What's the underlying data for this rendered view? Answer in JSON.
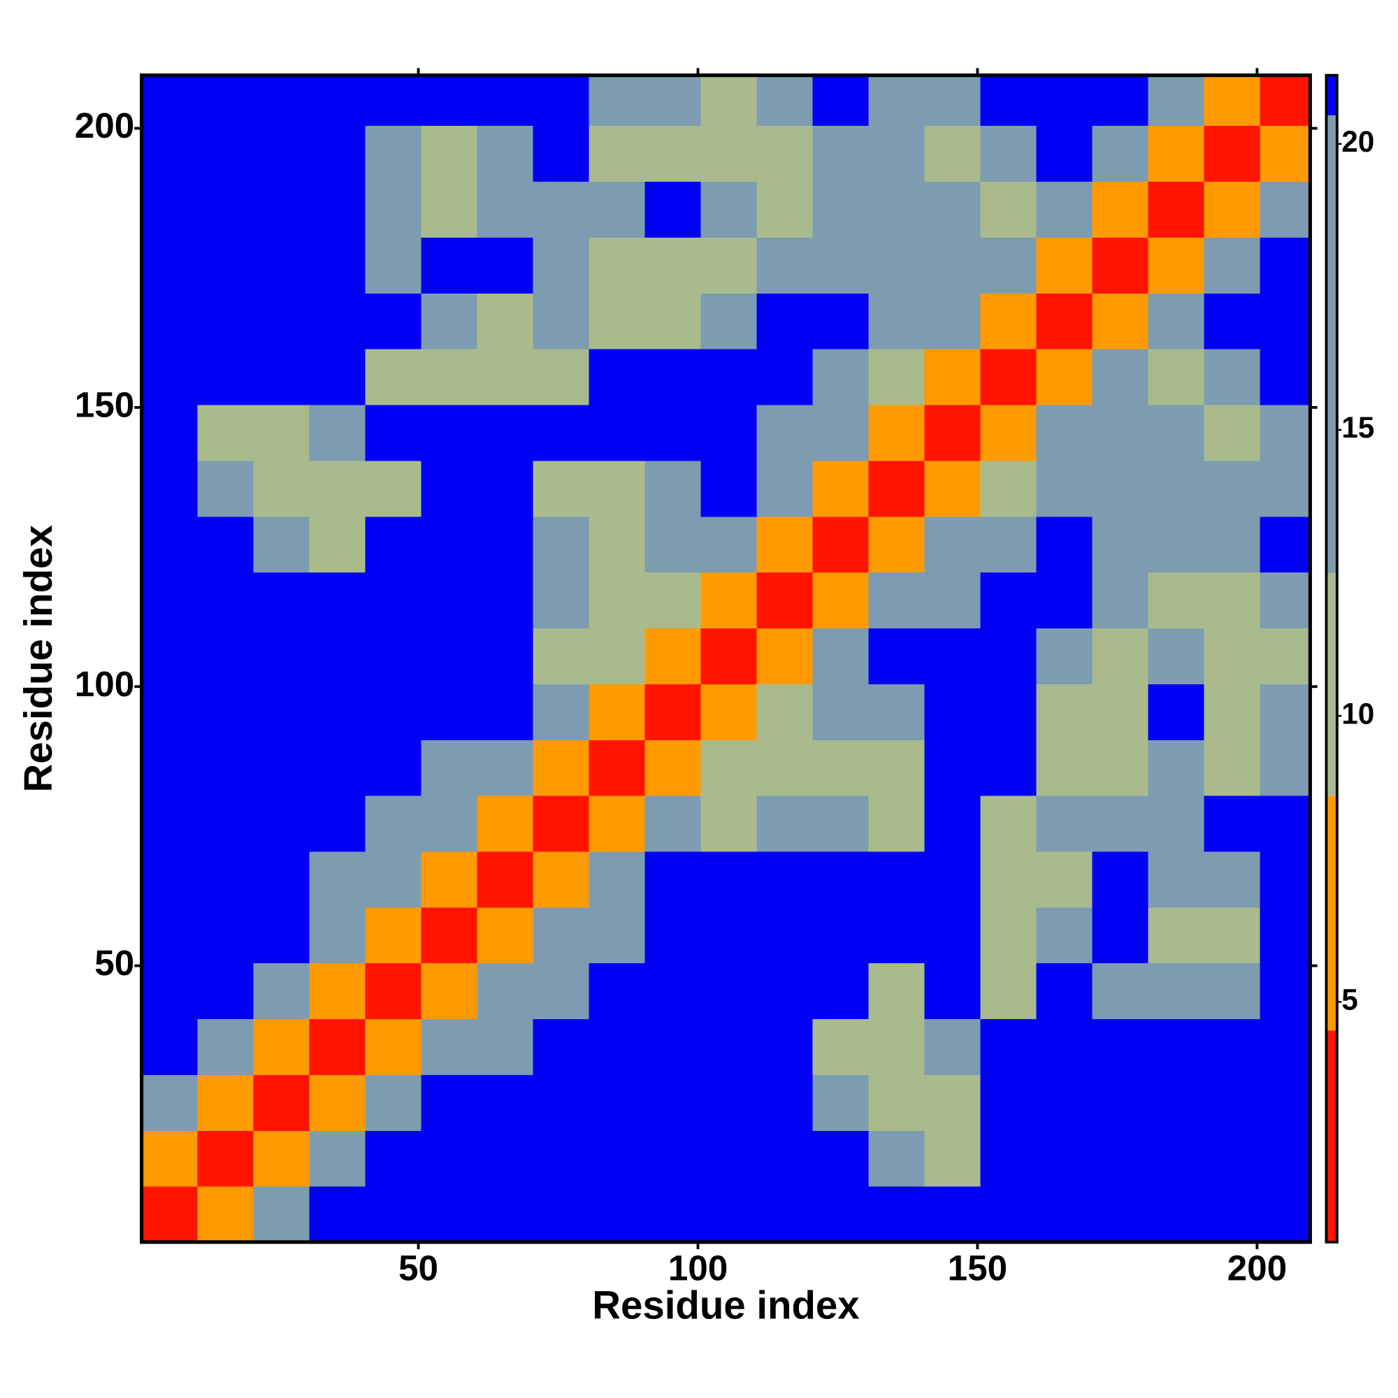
{
  "chart_data": {
    "type": "heatmap",
    "xlabel": "Residue index",
    "ylabel": "Residue index",
    "xlim": [
      0.5,
      209.5
    ],
    "ylim": [
      0.5,
      209.5
    ],
    "xticks": [
      50,
      100,
      150,
      200
    ],
    "yticks": [
      50,
      100,
      150,
      200
    ],
    "xbins": [
      0.5,
      10.5,
      20.5,
      30.5,
      40.5,
      50.5,
      60.5,
      70.5,
      80.5,
      90.5,
      100.5,
      110.5,
      120.5,
      130.5,
      140.5,
      150.5,
      160.5,
      170.5,
      180.5,
      190.5,
      200.5,
      209.5
    ],
    "ybins": [
      0.5,
      10.5,
      20.5,
      30.5,
      40.5,
      50.5,
      60.5,
      70.5,
      80.5,
      90.5,
      100.5,
      110.5,
      120.5,
      130.5,
      140.5,
      150.5,
      160.5,
      170.5,
      180.5,
      190.5,
      200.5,
      209.5
    ],
    "z": [
      [
        3,
        8,
        13,
        21,
        21,
        21,
        21,
        21,
        21,
        21,
        21,
        21,
        21,
        21,
        21,
        21,
        21,
        21,
        21,
        21,
        21
      ],
      [
        8,
        3,
        8,
        13,
        21,
        21,
        21,
        21,
        21,
        21,
        21,
        21,
        21,
        16,
        12,
        21,
        21,
        21,
        21,
        21,
        21
      ],
      [
        13,
        8,
        3,
        8,
        13,
        21,
        21,
        21,
        21,
        21,
        21,
        21,
        16,
        12,
        12,
        21,
        21,
        21,
        21,
        21,
        21
      ],
      [
        21,
        13,
        8,
        3,
        8,
        13,
        16,
        21,
        21,
        21,
        21,
        21,
        12,
        12,
        16,
        21,
        21,
        21,
        21,
        21,
        21
      ],
      [
        21,
        21,
        13,
        8,
        3,
        8,
        13,
        16,
        21,
        21,
        21,
        21,
        21,
        12,
        21,
        12,
        21,
        16,
        16,
        16,
        21
      ],
      [
        21,
        21,
        21,
        13,
        8,
        3,
        8,
        13,
        16,
        21,
        21,
        21,
        21,
        21,
        21,
        12,
        16,
        21,
        12,
        12,
        21
      ],
      [
        21,
        21,
        21,
        16,
        13,
        8,
        3,
        8,
        13,
        21,
        21,
        21,
        21,
        21,
        21,
        12,
        12,
        21,
        16,
        16,
        21
      ],
      [
        21,
        21,
        21,
        21,
        16,
        13,
        8,
        3,
        8,
        13,
        12,
        16,
        16,
        12,
        21,
        12,
        16,
        16,
        16,
        21,
        21
      ],
      [
        21,
        21,
        21,
        21,
        21,
        16,
        13,
        8,
        3,
        8,
        12,
        12,
        12,
        12,
        21,
        21,
        12,
        12,
        16,
        12,
        16
      ],
      [
        21,
        21,
        21,
        21,
        21,
        21,
        21,
        13,
        8,
        3,
        8,
        12,
        16,
        16,
        21,
        21,
        12,
        12,
        21,
        12,
        16
      ],
      [
        21,
        21,
        21,
        21,
        21,
        21,
        21,
        12,
        12,
        8,
        3,
        8,
        13,
        21,
        21,
        21,
        16,
        12,
        16,
        12,
        12
      ],
      [
        21,
        21,
        21,
        21,
        21,
        21,
        21,
        16,
        12,
        12,
        8,
        3,
        8,
        13,
        16,
        21,
        21,
        16,
        12,
        12,
        16
      ],
      [
        21,
        21,
        16,
        12,
        21,
        21,
        21,
        16,
        12,
        16,
        13,
        8,
        3,
        8,
        13,
        16,
        21,
        16,
        16,
        16,
        21
      ],
      [
        21,
        16,
        12,
        12,
        12,
        21,
        21,
        12,
        12,
        16,
        21,
        13,
        8,
        3,
        8,
        12,
        16,
        16,
        16,
        16,
        16
      ],
      [
        21,
        12,
        12,
        16,
        21,
        21,
        21,
        21,
        21,
        21,
        21,
        16,
        13,
        8,
        3,
        8,
        13,
        16,
        16,
        12,
        16
      ],
      [
        21,
        21,
        21,
        21,
        12,
        12,
        12,
        12,
        21,
        21,
        21,
        21,
        16,
        12,
        8,
        3,
        8,
        13,
        12,
        16,
        21
      ],
      [
        21,
        21,
        21,
        21,
        21,
        16,
        12,
        16,
        12,
        12,
        16,
        21,
        21,
        16,
        13,
        8,
        3,
        8,
        13,
        21,
        21
      ],
      [
        21,
        21,
        21,
        21,
        16,
        21,
        21,
        16,
        12,
        12,
        12,
        16,
        16,
        16,
        16,
        13,
        8,
        3,
        8,
        13,
        21
      ],
      [
        21,
        21,
        21,
        21,
        16,
        12,
        16,
        16,
        16,
        21,
        16,
        12,
        16,
        16,
        16,
        12,
        13,
        8,
        3,
        8,
        13
      ],
      [
        21,
        21,
        21,
        21,
        16,
        12,
        16,
        21,
        12,
        12,
        12,
        12,
        16,
        16,
        12,
        16,
        21,
        13,
        8,
        3,
        8
      ],
      [
        21,
        21,
        21,
        21,
        21,
        21,
        21,
        21,
        16,
        16,
        12,
        16,
        21,
        16,
        16,
        21,
        21,
        21,
        13,
        8,
        3
      ]
    ],
    "colorbar": {
      "lim": [
        0.8,
        21.2
      ],
      "ticks": [
        5,
        10,
        15,
        20
      ],
      "bands": [
        {
          "from": 0.8,
          "to": 4.5,
          "color": "#ff1400"
        },
        {
          "from": 4.5,
          "to": 8.6,
          "color": "#ff9a00"
        },
        {
          "from": 8.6,
          "to": 12.5,
          "color": "#a9bb8c"
        },
        {
          "from": 12.5,
          "to": 20.5,
          "color": "#7d9cb2"
        },
        {
          "from": 20.5,
          "to": 21.2,
          "color": "#0000f5"
        }
      ]
    }
  }
}
